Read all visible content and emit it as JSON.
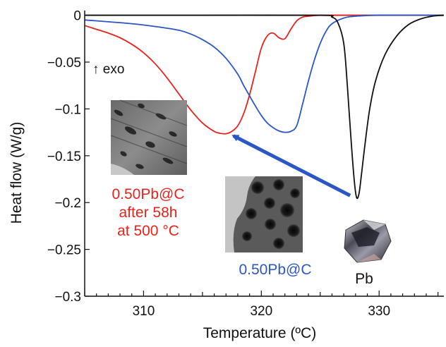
{
  "chart_data": {
    "type": "line",
    "title": "",
    "xlabel": "Temperature (ºC)",
    "ylabel": "Heat flow (W/g)",
    "xlim": [
      305,
      335.5
    ],
    "ylim": [
      -0.3,
      0.005
    ],
    "x_ticks": [
      310,
      320,
      330
    ],
    "x_tick_labels": [
      "310",
      "320",
      "330"
    ],
    "y_ticks": [
      0,
      -0.05,
      -0.1,
      -0.15,
      -0.2,
      -0.25,
      -0.3
    ],
    "y_tick_labels": [
      "0",
      "−0.05",
      "−0.1",
      "−0.15",
      "−0.2",
      "−0.25",
      "−0.3"
    ],
    "grid": false,
    "legend": "none",
    "series": [
      {
        "name": "0.50Pb@C after 58h at 500 °C",
        "color": "#e8231d",
        "x": [
          305,
          306,
          307,
          308,
          309,
          310,
          311,
          312,
          313,
          314,
          315,
          316,
          316.5,
          317,
          317.5,
          318,
          318.5,
          319,
          319.5,
          320,
          320.5,
          321,
          321.5,
          322,
          322.5,
          323,
          323.5,
          324,
          325,
          327,
          330,
          335.5
        ],
        "y": [
          -0.011,
          -0.015,
          -0.019,
          -0.024,
          -0.031,
          -0.04,
          -0.052,
          -0.067,
          -0.084,
          -0.101,
          -0.115,
          -0.124,
          -0.126,
          -0.1265,
          -0.124,
          -0.118,
          -0.105,
          -0.085,
          -0.06,
          -0.035,
          -0.022,
          -0.019,
          -0.024,
          -0.025,
          -0.015,
          -0.006,
          -0.002,
          -0.001,
          0,
          0,
          0,
          0
        ]
      },
      {
        "name": "0.50Pb@C",
        "color": "#2a56c6",
        "x": [
          305,
          307,
          309,
          311,
          313,
          314,
          315,
          316,
          317,
          318,
          318.5,
          319,
          319.5,
          320,
          320.5,
          321,
          321.5,
          322,
          322.5,
          323,
          323.5,
          324,
          324.5,
          325,
          325.5,
          326,
          327,
          328,
          330,
          335.5
        ],
        "y": [
          -0.005,
          -0.007,
          -0.009,
          -0.012,
          -0.016,
          -0.02,
          -0.026,
          -0.034,
          -0.046,
          -0.063,
          -0.075,
          -0.086,
          -0.097,
          -0.107,
          -0.115,
          -0.12,
          -0.1235,
          -0.125,
          -0.124,
          -0.118,
          -0.095,
          -0.07,
          -0.048,
          -0.03,
          -0.017,
          -0.009,
          -0.003,
          -0.001,
          0,
          0
        ]
      },
      {
        "name": "Pb",
        "color": "#111111",
        "x": [
          305,
          315,
          325,
          326,
          326.5,
          327,
          327.3,
          327.6,
          327.9,
          328.1,
          328.3,
          328.5,
          328.8,
          329.2,
          329.7,
          330.5,
          331.5,
          332.5,
          333.5,
          334.5,
          335.5
        ],
        "y": [
          0,
          0,
          0,
          -0.002,
          -0.008,
          -0.03,
          -0.075,
          -0.13,
          -0.178,
          -0.195,
          -0.19,
          -0.17,
          -0.138,
          -0.1,
          -0.07,
          -0.042,
          -0.022,
          -0.01,
          -0.004,
          -0.001,
          0
        ]
      }
    ],
    "annotations": {
      "exo": "↑ exo",
      "label_red": [
        "0.50Pb@C",
        "after 58h",
        "at 500 °C"
      ],
      "label_blue": "0.50Pb@C",
      "label_black": "Pb",
      "arrow": {
        "from": [
          327.9,
          -0.194
        ],
        "to": [
          317.4,
          -0.128
        ],
        "color": "#2a56c6"
      }
    }
  },
  "colors": {
    "red": "#e8231d",
    "blue": "#2a56c6",
    "black": "#111111",
    "baseline": "#7a7a7a"
  }
}
